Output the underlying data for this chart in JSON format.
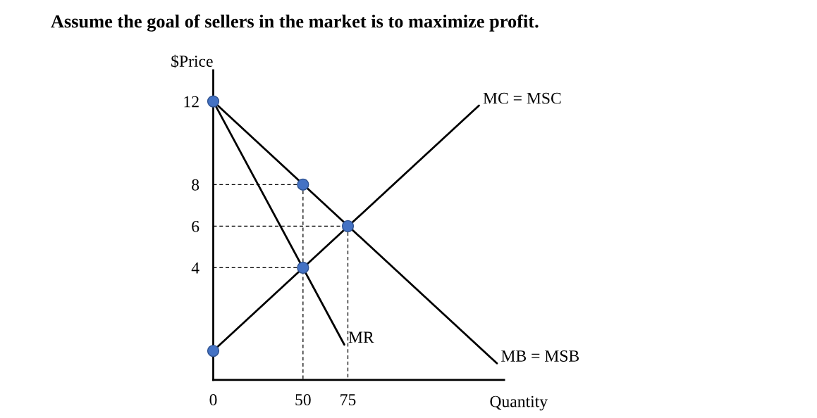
{
  "chart_data": {
    "type": "line",
    "title": "Assume the goal of sellers in the market is to maximize profit.",
    "ylabel": "$Price",
    "xlabel": "Quantity",
    "xlim": [
      0,
      162
    ],
    "ylim": [
      -1.4,
      13.5
    ],
    "xticks": [
      0,
      50,
      75
    ],
    "yticks": [
      4,
      6,
      8,
      12
    ],
    "grid": false,
    "legend": false,
    "series": [
      {
        "name": "MC = MSC",
        "color": "#000000",
        "x": [
          0,
          148
        ],
        "values": [
          0,
          11.8
        ],
        "line_style": "solid",
        "marker": "none"
      },
      {
        "name": "MB = MSB",
        "color": "#000000",
        "x": [
          0,
          158
        ],
        "values": [
          12,
          -0.6
        ],
        "line_style": "solid",
        "marker": "none"
      },
      {
        "name": "MR",
        "color": "#000000",
        "x": [
          0,
          73
        ],
        "values": [
          12,
          0.3
        ],
        "line_style": "solid",
        "marker": "none"
      },
      {
        "color": "#000000",
        "x": [
          0,
          50
        ],
        "values": [
          8,
          8
        ],
        "line_style": "dashed",
        "marker": "none"
      },
      {
        "color": "#000000",
        "x": [
          0,
          75
        ],
        "values": [
          6,
          6
        ],
        "line_style": "dashed",
        "marker": "none"
      },
      {
        "color": "#000000",
        "x": [
          0,
          50
        ],
        "values": [
          4,
          4
        ],
        "line_style": "dashed",
        "marker": "none"
      },
      {
        "color": "#000000",
        "x": [
          50,
          50
        ],
        "values": [
          8,
          -1.4
        ],
        "line_style": "dashed",
        "marker": "none"
      },
      {
        "color": "#000000",
        "x": [
          75,
          75
        ],
        "values": [
          6,
          -1.4
        ],
        "line_style": "dashed",
        "marker": "none"
      },
      {
        "type": "scatter",
        "color": "#4472c4",
        "x": [
          0,
          50,
          75,
          50,
          0
        ],
        "values": [
          12,
          8,
          6,
          4,
          0
        ],
        "marker": "circle"
      }
    ]
  }
}
